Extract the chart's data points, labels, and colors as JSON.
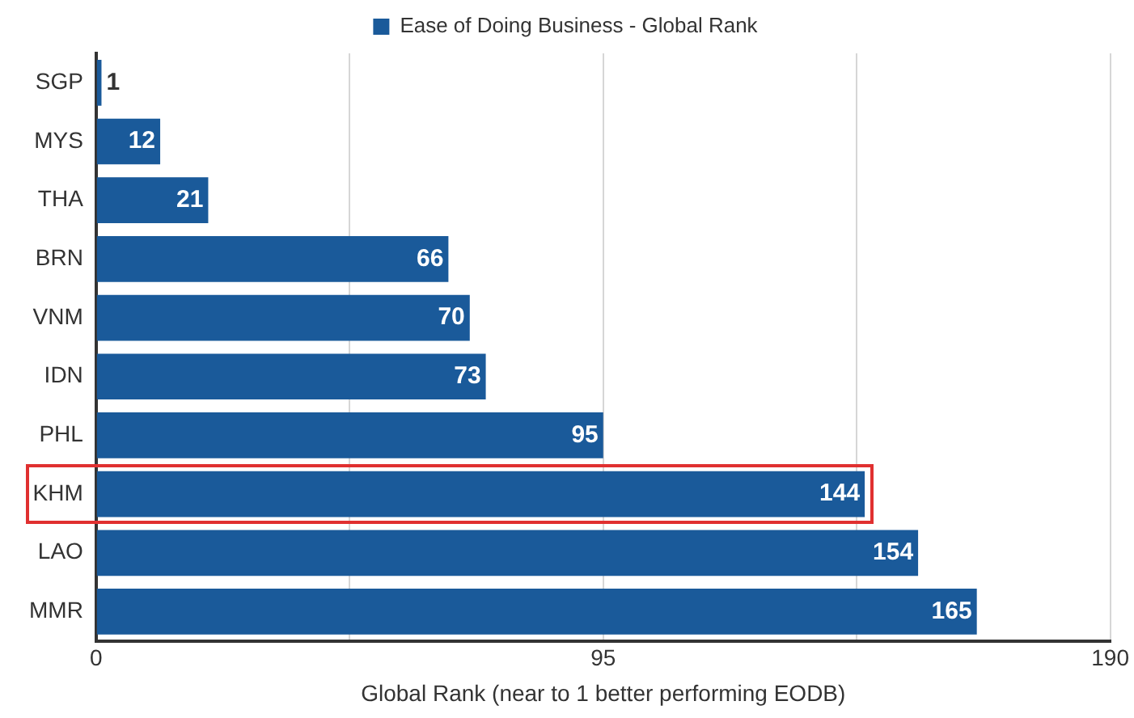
{
  "chart_data": {
    "type": "bar",
    "orientation": "horizontal",
    "xlabel": "Global Rank (near to 1 better performing EODB)",
    "categories": [
      "SGP",
      "MYS",
      "THA",
      "BRN",
      "VNM",
      "IDN",
      "PHL",
      "KHM",
      "LAO",
      "MMR"
    ],
    "series": [
      {
        "name": "Ease of Doing Business - Global Rank",
        "color": "#1a5a9a",
        "values": [
          1,
          12,
          21,
          66,
          70,
          73,
          95,
          144,
          154,
          165
        ]
      }
    ],
    "xlim": [
      0,
      190
    ],
    "xticks": [
      0,
      {
        "value": 47.5,
        "label": null
      },
      95,
      {
        "value": 142.5,
        "label": null
      },
      190
    ],
    "grid": "x",
    "legend": "top",
    "data_labels": true
  }
}
